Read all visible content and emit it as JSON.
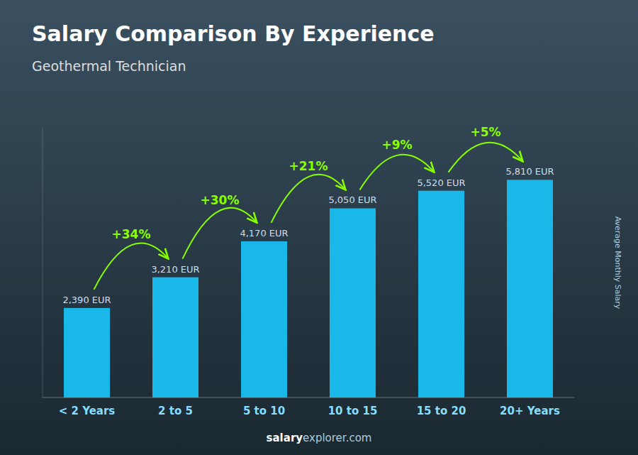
{
  "chart_data": {
    "type": "bar",
    "title": "Salary Comparison By Experience",
    "subtitle": "Geothermal Technician",
    "categories": [
      "< 2 Years",
      "2 to 5",
      "5 to 10",
      "10 to 15",
      "15 to 20",
      "20+ Years"
    ],
    "values": [
      2390,
      3210,
      4170,
      5050,
      5520,
      5810
    ],
    "value_labels": [
      "2,390 EUR",
      "3,210 EUR",
      "4,170 EUR",
      "5,050 EUR",
      "5,520 EUR",
      "5,810 EUR"
    ],
    "data_labels": true,
    "color": "#1ab8e8",
    "ylim": [
      0,
      7200
    ],
    "ylabel": "Average Monthly Salary",
    "tick_labels": "x",
    "grid": false,
    "annotations": [
      {
        "text": "+34%",
        "color": "#88ff00"
      },
      {
        "text": "+30%",
        "color": "#88ff00"
      },
      {
        "text": "+21%",
        "color": "#88ff00"
      },
      {
        "text": "+9%",
        "color": "#88ff00"
      },
      {
        "text": "+5%",
        "color": "#88ff00"
      }
    ],
    "watermark": [
      "salary",
      "explorer.com"
    ]
  }
}
